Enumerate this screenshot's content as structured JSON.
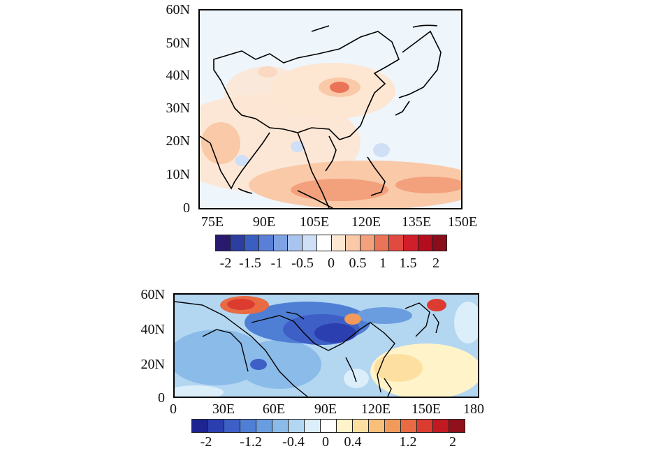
{
  "colors": {
    "top_scale": [
      "#2a1a6e",
      "#2d3ea0",
      "#3b5fc0",
      "#5a7fd6",
      "#7fa2e2",
      "#a9c4ee",
      "#cfe0f6",
      "#ffffff",
      "#fde6d2",
      "#f9c9a8",
      "#f3a07c",
      "#eb7458",
      "#e04a40",
      "#cf1f2b",
      "#b30d1e",
      "#8a0d1c"
    ],
    "bottom_scale": [
      "#1e2590",
      "#2c3fb0",
      "#3d5fc6",
      "#4f7fd4",
      "#6a9ddf",
      "#8bbbe8",
      "#b3d6f1",
      "#dbeefa",
      "#ffffff",
      "#fff3c9",
      "#fde0a1",
      "#f9c07c",
      "#f29a5c",
      "#e86b43",
      "#dc3c30",
      "#c11a22",
      "#90101c"
    ]
  },
  "top_map": {
    "y_ticks": [
      "60N",
      "50N",
      "40N",
      "30N",
      "20N",
      "10N",
      "0"
    ],
    "x_ticks": [
      "75E",
      "90E",
      "105E",
      "120E",
      "135E",
      "150E"
    ],
    "colorbar_labels": [
      "-2",
      "-1.5",
      "-1",
      "-0.5",
      "0",
      "0.5",
      "1",
      "1.5",
      "2"
    ]
  },
  "bottom_map": {
    "y_ticks": [
      "60N",
      "40N",
      "20N",
      "0"
    ],
    "x_ticks": [
      "0",
      "30E",
      "60E",
      "90E",
      "120E",
      "150E",
      "180"
    ],
    "colorbar_labels": [
      "-2",
      "-1.2",
      "-0.4",
      "0",
      "0.4",
      "1.2",
      "2"
    ]
  }
}
